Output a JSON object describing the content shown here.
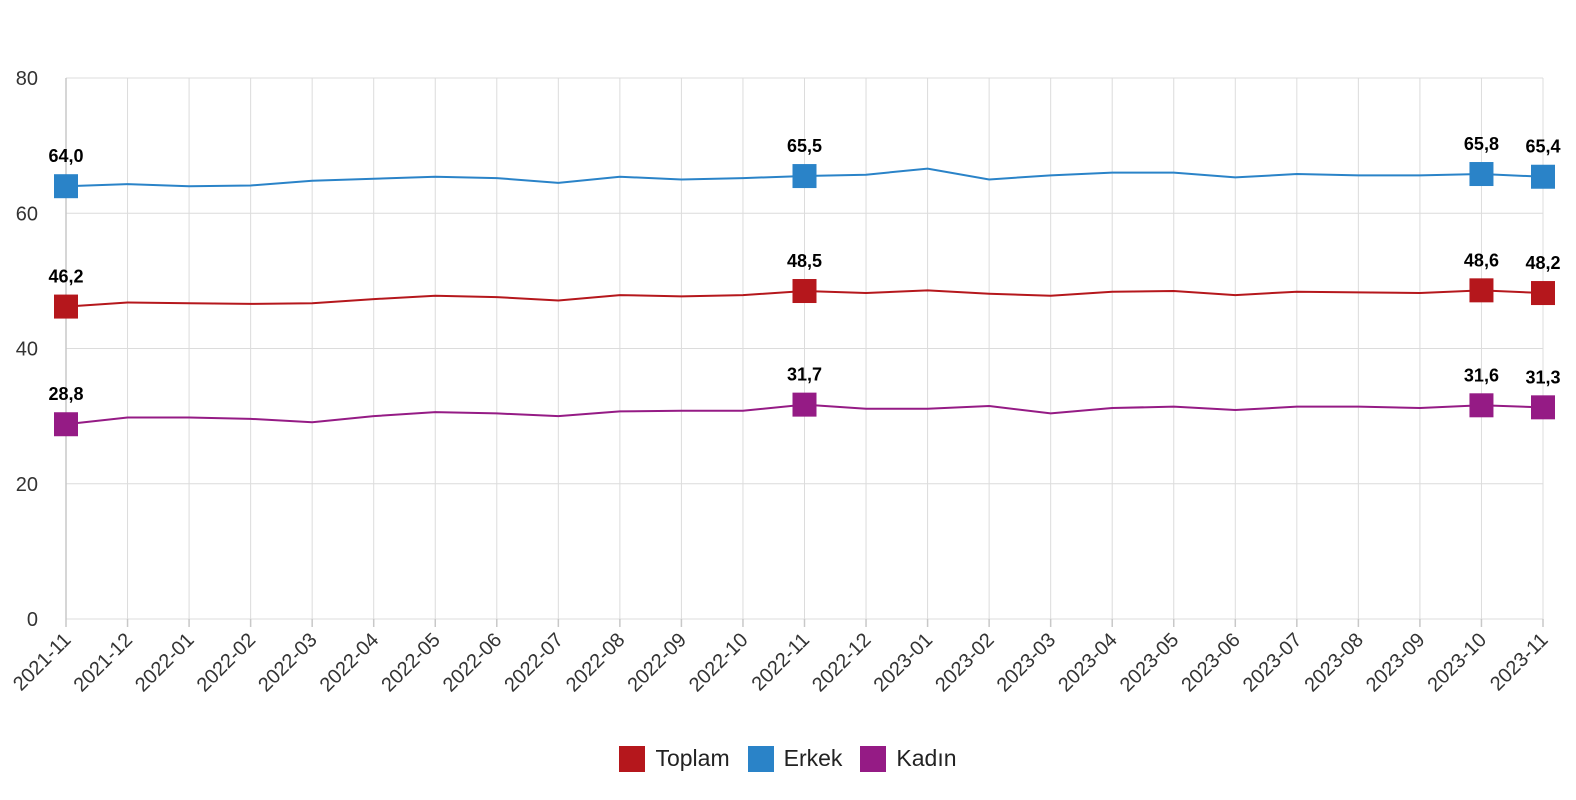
{
  "chart_data": {
    "type": "line",
    "title": "",
    "xlabel": "",
    "ylabel": "",
    "ylim": [
      0,
      80
    ],
    "yticks": [
      0,
      20,
      40,
      60,
      80
    ],
    "grid": true,
    "legend_position": "bottom-center",
    "categories": [
      "2021-11",
      "2021-12",
      "2022-01",
      "2022-02",
      "2022-03",
      "2022-04",
      "2022-05",
      "2022-06",
      "2022-07",
      "2022-08",
      "2022-09",
      "2022-10",
      "2022-11",
      "2022-12",
      "2023-01",
      "2023-02",
      "2023-03",
      "2023-04",
      "2023-05",
      "2023-06",
      "2023-07",
      "2023-08",
      "2023-09",
      "2023-10",
      "2023-11"
    ],
    "series": [
      {
        "name": "Toplam",
        "color": "#b5171c",
        "values": [
          46.2,
          46.8,
          46.7,
          46.6,
          46.7,
          47.3,
          47.8,
          47.6,
          47.1,
          47.9,
          47.7,
          47.9,
          48.5,
          48.2,
          48.6,
          48.1,
          47.8,
          48.4,
          48.5,
          47.9,
          48.4,
          48.3,
          48.2,
          48.6,
          48.2
        ],
        "labels": [
          {
            "index": 0,
            "text": "46,2"
          },
          {
            "index": 12,
            "text": "48,5"
          },
          {
            "index": 23,
            "text": "48,6"
          },
          {
            "index": 24,
            "text": "48,2"
          }
        ]
      },
      {
        "name": "Erkek",
        "color": "#2a83c8",
        "values": [
          64.0,
          64.3,
          64.0,
          64.1,
          64.8,
          65.1,
          65.4,
          65.2,
          64.5,
          65.4,
          65.0,
          65.2,
          65.5,
          65.7,
          66.6,
          65.0,
          65.6,
          66.0,
          66.0,
          65.3,
          65.8,
          65.6,
          65.6,
          65.8,
          65.4
        ],
        "labels": [
          {
            "index": 0,
            "text": "64,0"
          },
          {
            "index": 12,
            "text": "65,5"
          },
          {
            "index": 23,
            "text": "65,8"
          },
          {
            "index": 24,
            "text": "65,4"
          }
        ]
      },
      {
        "name": "Kadın",
        "color": "#951b85",
        "values": [
          28.8,
          29.8,
          29.8,
          29.6,
          29.1,
          30.0,
          30.6,
          30.4,
          30.0,
          30.7,
          30.8,
          30.8,
          31.7,
          31.1,
          31.1,
          31.5,
          30.4,
          31.2,
          31.4,
          30.9,
          31.4,
          31.4,
          31.2,
          31.6,
          31.3
        ],
        "labels": [
          {
            "index": 0,
            "text": "28,8"
          },
          {
            "index": 12,
            "text": "31,7"
          },
          {
            "index": 23,
            "text": "31,6"
          },
          {
            "index": 24,
            "text": "31,3"
          }
        ]
      }
    ]
  }
}
